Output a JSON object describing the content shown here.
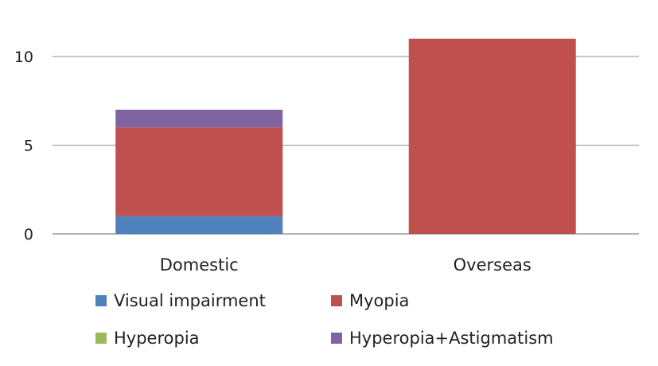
{
  "chart_data": {
    "type": "bar",
    "stacked": true,
    "categories": [
      "Domestic",
      "Overseas"
    ],
    "series": [
      {
        "name": "Visual impairment",
        "color": "#4f81bd",
        "values": [
          1,
          0
        ]
      },
      {
        "name": "Myopia",
        "color": "#c0504d",
        "values": [
          5,
          11
        ]
      },
      {
        "name": "Hyperopia",
        "color": "#9bbb59",
        "values": [
          0,
          0
        ]
      },
      {
        "name": "Hyperopia+Astigmatism",
        "color": "#8064a2",
        "values": [
          1,
          0
        ]
      }
    ],
    "yticks": [
      0,
      5,
      10
    ],
    "ylim": [
      0,
      12
    ],
    "grid": true,
    "legend_position": "bottom"
  }
}
